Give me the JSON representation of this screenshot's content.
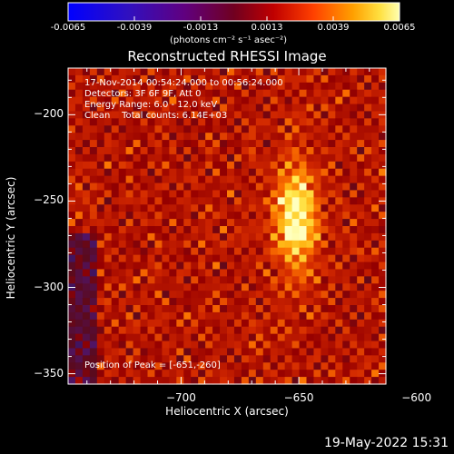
{
  "chart_data": {
    "type": "heatmap",
    "title": "Reconstructed RHESSI Image",
    "xlabel": "Heliocentric X (arcsec)",
    "ylabel": "Heliocentric Y (arcsec)",
    "xlim": [
      -748,
      -613
    ],
    "ylim": [
      -356,
      -173
    ],
    "x_ticks": [
      -700,
      -650,
      -600
    ],
    "y_ticks": [
      -200,
      -250,
      -300,
      -350
    ],
    "colorbar": {
      "min": -0.0065,
      "max": 0.0065,
      "ticks": [
        "-0.0065",
        "-0.0039",
        "-0.0013",
        "0.0013",
        "0.0039",
        "0.0065"
      ],
      "unit_label": "(photons cm⁻² s⁻¹ asec⁻²)"
    },
    "peak": {
      "x": -651,
      "y": -260
    },
    "annotations": {
      "time_range": "17-Nov-2014 00:54:24.000 to 00:56:24.000",
      "detectors": "Detectors: 3F 6F 9F, Att 0",
      "energy": "Energy Range: 6.0 - 12.0 keV",
      "clean": "Clean    Total counts: 6.14E+03",
      "peak_label": "Position of Peak = [-651,-260]"
    },
    "footer_date": "19-May-2022 15:31"
  }
}
